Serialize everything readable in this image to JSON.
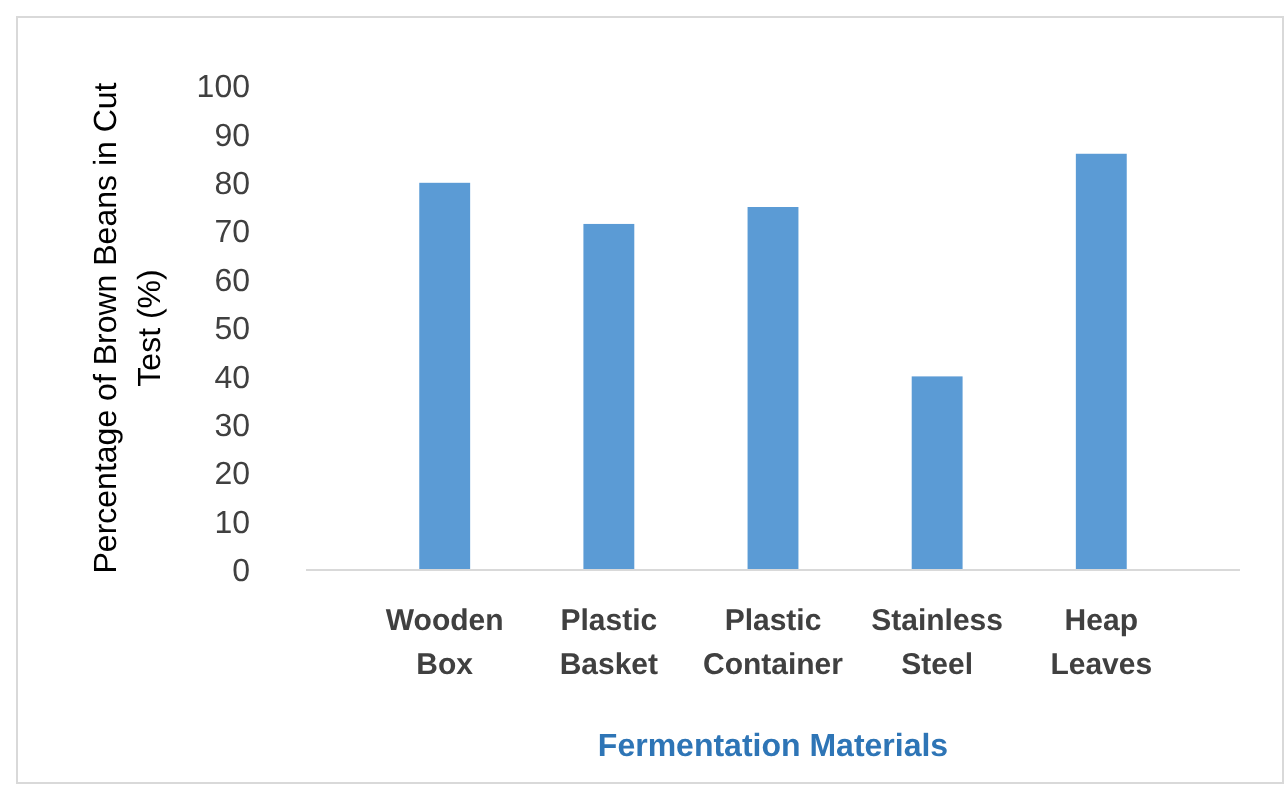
{
  "chart_data": {
    "type": "bar",
    "xlabel": "Fermentation Materials",
    "ylabel": "Percentage of Brown Beans in Cut Test (%)",
    "categories": [
      "Wooden Box",
      "Plastic Basket",
      "Plastic Container",
      "Stainless Steel",
      "Heap Leaves"
    ],
    "values": [
      80,
      71.5,
      75,
      40,
      86
    ],
    "color": "#5b9bd5",
    "ylim": [
      0,
      100
    ],
    "yticks": [
      0,
      10,
      20,
      30,
      40,
      50,
      60,
      70,
      80,
      90,
      100
    ],
    "grid": false
  }
}
